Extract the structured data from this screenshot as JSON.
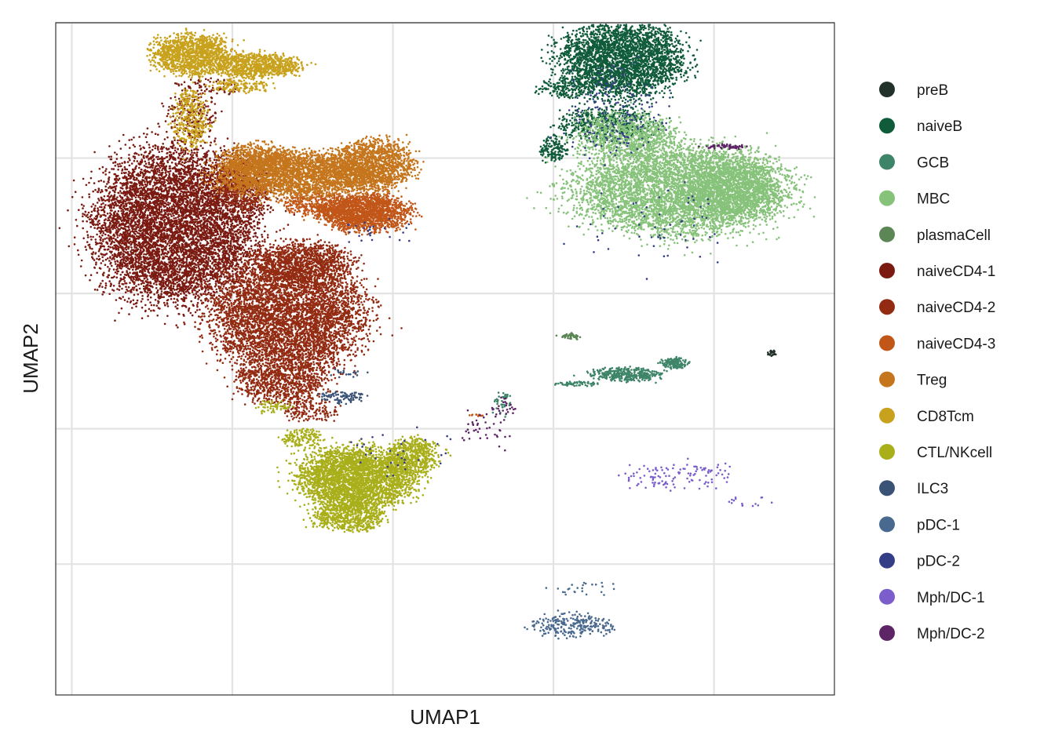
{
  "chart_data": {
    "type": "scatter",
    "title": "",
    "xlabel": "UMAP1",
    "ylabel": "UMAP2",
    "xlim": [
      -1,
      8.7
    ],
    "ylim": [
      -9.9,
      5
    ],
    "x_ticks": [
      -0.8,
      1.2,
      3.2,
      5.2,
      7.2
    ],
    "y_ticks": [
      -7,
      -4,
      -1,
      2,
      5
    ],
    "tick_labels_shown": false,
    "grid": true,
    "legend_position": "right",
    "series": [
      {
        "name": "preB",
        "color": "#22322A",
        "clusters": [
          {
            "cx": 7.92,
            "cy": -2.32,
            "rx": 0.05,
            "ry": 0.06,
            "n": 25
          }
        ]
      },
      {
        "name": "naiveB",
        "color": "#0F5B3A",
        "clusters": [
          {
            "cx": 6.05,
            "cy": 4.2,
            "rx": 0.7,
            "ry": 0.75,
            "n": 3000
          },
          {
            "cx": 5.35,
            "cy": 3.55,
            "rx": 0.3,
            "ry": 0.2,
            "n": 180
          },
          {
            "cx": 5.2,
            "cy": 2.2,
            "rx": 0.15,
            "ry": 0.25,
            "n": 150
          },
          {
            "cx": 5.85,
            "cy": 2.75,
            "rx": 0.55,
            "ry": 0.35,
            "n": 500
          }
        ]
      },
      {
        "name": "GCB",
        "color": "#3E8468",
        "clusters": [
          {
            "cx": 6.1,
            "cy": -2.8,
            "rx": 0.4,
            "ry": 0.14,
            "n": 350
          },
          {
            "cx": 6.7,
            "cy": -2.55,
            "rx": 0.15,
            "ry": 0.12,
            "n": 150
          },
          {
            "cx": 4.55,
            "cy": -3.45,
            "rx": 0.1,
            "ry": 0.25,
            "n": 40
          },
          {
            "cx": 5.5,
            "cy": -3.0,
            "rx": 0.25,
            "ry": 0.05,
            "n": 60
          }
        ]
      },
      {
        "name": "MBC",
        "color": "#86C27A",
        "clusters": [
          {
            "cx": 6.75,
            "cy": 1.3,
            "rx": 1.2,
            "ry": 0.9,
            "n": 5000
          },
          {
            "cx": 6.1,
            "cy": 2.5,
            "rx": 0.55,
            "ry": 0.45,
            "n": 900
          },
          {
            "cx": 7.45,
            "cy": 1.3,
            "rx": 0.55,
            "ry": 0.6,
            "n": 1200
          }
        ]
      },
      {
        "name": "plasmaCell",
        "color": "#5C8656",
        "clusters": [
          {
            "cx": 5.42,
            "cy": -1.95,
            "rx": 0.12,
            "ry": 0.06,
            "n": 50
          }
        ]
      },
      {
        "name": "naiveCD4-1",
        "color": "#7A1A11",
        "clusters": [
          {
            "cx": 0.5,
            "cy": 0.5,
            "rx": 0.92,
            "ry": 1.55,
            "n": 7000
          },
          {
            "cx": 0.7,
            "cy": 2.95,
            "rx": 0.3,
            "ry": 0.5,
            "n": 180
          },
          {
            "cx": 0.95,
            "cy": 3.6,
            "rx": 0.4,
            "ry": 0.15,
            "n": 80
          }
        ]
      },
      {
        "name": "naiveCD4-2",
        "color": "#932B12",
        "clusters": [
          {
            "cx": 1.9,
            "cy": -1.5,
            "rx": 0.85,
            "ry": 1.2,
            "n": 5000
          },
          {
            "cx": 2.1,
            "cy": -0.3,
            "rx": 0.55,
            "ry": 0.4,
            "n": 900
          },
          {
            "cx": 1.8,
            "cy": -3.0,
            "rx": 0.5,
            "ry": 0.4,
            "n": 700
          },
          {
            "cx": 2.15,
            "cy": -3.6,
            "rx": 0.3,
            "ry": 0.25,
            "n": 150
          },
          {
            "cx": 1.35,
            "cy": 1.4,
            "rx": 0.3,
            "ry": 0.5,
            "n": 500
          }
        ]
      },
      {
        "name": "naiveCD4-3",
        "color": "#C15618",
        "clusters": [
          {
            "cx": 2.85,
            "cy": 0.8,
            "rx": 0.5,
            "ry": 0.35,
            "n": 1800
          },
          {
            "cx": 2.2,
            "cy": 1.0,
            "rx": 0.35,
            "ry": 0.25,
            "n": 300
          },
          {
            "cx": 4.25,
            "cy": -3.7,
            "rx": 0.08,
            "ry": 0.03,
            "n": 12
          }
        ]
      },
      {
        "name": "Treg",
        "color": "#C5761D",
        "clusters": [
          {
            "cx": 2.0,
            "cy": 1.65,
            "rx": 0.9,
            "ry": 0.45,
            "n": 2800
          },
          {
            "cx": 2.95,
            "cy": 1.85,
            "rx": 0.45,
            "ry": 0.5,
            "n": 1400
          },
          {
            "cx": 1.5,
            "cy": 2.0,
            "rx": 0.4,
            "ry": 0.3,
            "n": 500
          }
        ]
      },
      {
        "name": "CD8Tcm",
        "color": "#C9A21D",
        "clusters": [
          {
            "cx": 0.7,
            "cy": 4.3,
            "rx": 0.45,
            "ry": 0.4,
            "n": 1300
          },
          {
            "cx": 1.5,
            "cy": 4.05,
            "rx": 0.5,
            "ry": 0.25,
            "n": 900
          },
          {
            "cx": 0.68,
            "cy": 2.85,
            "rx": 0.2,
            "ry": 0.6,
            "n": 350
          },
          {
            "cx": 1.3,
            "cy": 3.6,
            "rx": 0.35,
            "ry": 0.12,
            "n": 150
          }
        ]
      },
      {
        "name": "CTL/NKcell",
        "color": "#A9AF1A",
        "clusters": [
          {
            "cx": 2.75,
            "cy": -5.1,
            "rx": 0.65,
            "ry": 0.6,
            "n": 3200
          },
          {
            "cx": 2.65,
            "cy": -5.95,
            "rx": 0.4,
            "ry": 0.3,
            "n": 600
          },
          {
            "cx": 3.45,
            "cy": -4.6,
            "rx": 0.3,
            "ry": 0.35,
            "n": 500
          },
          {
            "cx": 2.1,
            "cy": -4.2,
            "rx": 0.25,
            "ry": 0.2,
            "n": 150
          },
          {
            "cx": 1.7,
            "cy": -3.5,
            "rx": 0.2,
            "ry": 0.12,
            "n": 60
          }
        ]
      },
      {
        "name": "ILC3",
        "color": "#3A5275",
        "clusters": [
          {
            "cx": 2.55,
            "cy": -3.3,
            "rx": 0.3,
            "ry": 0.12,
            "n": 90
          },
          {
            "cx": 2.65,
            "cy": -2.75,
            "rx": 0.2,
            "ry": 0.1,
            "n": 20
          }
        ]
      },
      {
        "name": "pDC-1",
        "color": "#49698F",
        "clusters": [
          {
            "cx": 5.45,
            "cy": -8.35,
            "rx": 0.45,
            "ry": 0.22,
            "n": 250
          },
          {
            "cx": 5.55,
            "cy": -7.55,
            "rx": 0.4,
            "ry": 0.15,
            "n": 25
          }
        ]
      },
      {
        "name": "pDC-2",
        "color": "#343E86",
        "clusters": [
          {
            "cx": 6.0,
            "cy": 3.0,
            "rx": 0.6,
            "ry": 0.9,
            "n": 180
          },
          {
            "cx": 6.5,
            "cy": 0.5,
            "rx": 1.0,
            "ry": 0.8,
            "n": 60
          },
          {
            "cx": 3.0,
            "cy": 0.4,
            "rx": 0.4,
            "ry": 0.3,
            "n": 25
          },
          {
            "cx": 3.3,
            "cy": -4.5,
            "rx": 0.6,
            "ry": 0.5,
            "n": 35
          }
        ]
      },
      {
        "name": "Mph/DC-1",
        "color": "#7B5ECC",
        "clusters": [
          {
            "cx": 6.75,
            "cy": -5.05,
            "rx": 0.7,
            "ry": 0.28,
            "n": 120
          },
          {
            "cx": 7.65,
            "cy": -5.6,
            "rx": 0.35,
            "ry": 0.12,
            "n": 15
          }
        ]
      },
      {
        "name": "Mph/DC-2",
        "color": "#5D2466",
        "clusters": [
          {
            "cx": 7.35,
            "cy": 2.25,
            "rx": 0.25,
            "ry": 0.05,
            "n": 60
          },
          {
            "cx": 4.35,
            "cy": -4.0,
            "rx": 0.25,
            "ry": 0.45,
            "n": 45
          },
          {
            "cx": 4.6,
            "cy": -3.5,
            "rx": 0.15,
            "ry": 0.15,
            "n": 20
          }
        ]
      }
    ]
  }
}
